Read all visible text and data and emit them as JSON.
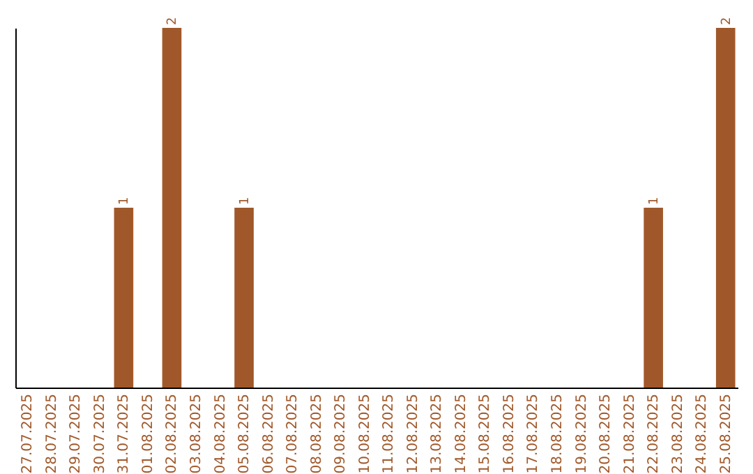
{
  "chart_data": {
    "type": "bar",
    "categories": [
      "27.07.2025",
      "28.07.2025",
      "29.07.2025",
      "30.07.2025",
      "31.07.2025",
      "01.08.2025",
      "02.08.2025",
      "03.08.2025",
      "04.08.2025",
      "05.08.2025",
      "06.08.2025",
      "07.08.2025",
      "08.08.2025",
      "09.08.2025",
      "10.08.2025",
      "11.08.2025",
      "12.08.2025",
      "13.08.2025",
      "14.08.2025",
      "15.08.2025",
      "16.08.2025",
      "17.08.2025",
      "18.08.2025",
      "19.08.2025",
      "20.08.2025",
      "21.08.2025",
      "22.08.2025",
      "23.08.2025",
      "24.08.2025",
      "25.08.2025"
    ],
    "values": [
      0,
      0,
      0,
      0,
      1,
      0,
      2,
      0,
      0,
      1,
      0,
      0,
      0,
      0,
      0,
      0,
      0,
      0,
      0,
      0,
      0,
      0,
      0,
      0,
      0,
      0,
      1,
      0,
      0,
      2
    ],
    "value_labels": [
      null,
      null,
      null,
      null,
      "1",
      null,
      "2",
      null,
      null,
      "1",
      null,
      null,
      null,
      null,
      null,
      null,
      null,
      null,
      null,
      null,
      null,
      null,
      null,
      null,
      null,
      null,
      "1",
      null,
      null,
      "2"
    ],
    "color": "#a0582a",
    "tick_labels": "x",
    "grid": false
  }
}
